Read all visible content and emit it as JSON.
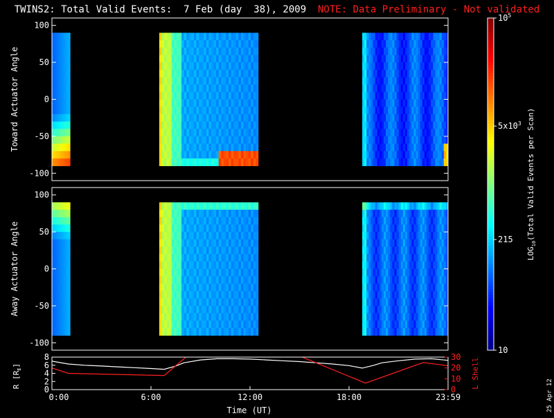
{
  "header": {
    "title": "TWINS2: Total Valid Events:  7 Feb (day  38), 2009",
    "note": "NOTE: Data Preliminary - Not validated"
  },
  "date_stamp": "25 Apr 12",
  "chart_data": [
    {
      "type": "heatmap",
      "name": "toward-panel",
      "ylabel": "Toward Actuator Angle",
      "ylim": [
        -110,
        110
      ],
      "yticks": [
        "100",
        "50",
        "0",
        "-50",
        "-100"
      ],
      "ytick_values": [
        100,
        50,
        0,
        -50,
        -100
      ],
      "xlim": [
        0,
        24
      ],
      "angle_range": [
        -90,
        90
      ],
      "data_blocks": [
        {
          "t_start": 0.0,
          "t_end": 1.1,
          "profile": "toward-early"
        },
        {
          "t_start": 6.5,
          "t_end": 12.5,
          "profile": "toward-mid"
        },
        {
          "t_start": 18.8,
          "t_end": 24.0,
          "profile": "toward-late"
        }
      ]
    },
    {
      "type": "heatmap",
      "name": "away-panel",
      "ylabel": "Away Actuator Angle",
      "ylim": [
        -110,
        110
      ],
      "yticks": [
        "100",
        "50",
        "0",
        "-50",
        "-100"
      ],
      "ytick_values": [
        100,
        50,
        0,
        -50,
        -100
      ],
      "xlim": [
        0,
        24
      ],
      "angle_range": [
        -90,
        90
      ],
      "data_blocks": [
        {
          "t_start": 0.0,
          "t_end": 1.1,
          "profile": "away-early"
        },
        {
          "t_start": 6.5,
          "t_end": 12.5,
          "profile": "away-mid"
        },
        {
          "t_start": 18.8,
          "t_end": 24.0,
          "profile": "away-late"
        }
      ]
    },
    {
      "type": "line",
      "name": "orbit-panel",
      "ylabel_left": "R [R",
      "ylabel_left_sub": "E",
      "ylabel_left_end": "]",
      "ylabel_right": "L Shell",
      "ylim_left": [
        0,
        8
      ],
      "ylim_right": [
        0,
        30
      ],
      "yticks_left": [
        "8",
        "6",
        "4",
        "2",
        "0"
      ],
      "yticks_left_values": [
        8,
        6,
        4,
        2,
        0
      ],
      "yticks_right": [
        "30",
        "20",
        "10",
        "0"
      ],
      "yticks_right_values": [
        30,
        20,
        10,
        0
      ],
      "xlabel": "Time (UT)",
      "xticks": [
        "0:00",
        "6:00",
        "12:00",
        "18:00",
        "23:59"
      ],
      "xtick_values": [
        0,
        6,
        12,
        18,
        24
      ],
      "xlim": [
        0,
        24
      ],
      "series": [
        {
          "axis": "left",
          "color": "#ffffff",
          "x": [
            0,
            1,
            2,
            3,
            4,
            5,
            6,
            6.8,
            7.5,
            8,
            9,
            10,
            11,
            12,
            13,
            14,
            15,
            16,
            17,
            18,
            18.8,
            19.5,
            20,
            21,
            22,
            23,
            24
          ],
          "y": [
            7.0,
            6.3,
            6.0,
            5.8,
            5.6,
            5.4,
            5.2,
            5.0,
            5.8,
            6.6,
            7.3,
            7.6,
            7.6,
            7.5,
            7.3,
            7.1,
            6.9,
            6.6,
            6.3,
            5.9,
            5.3,
            6.0,
            6.6,
            7.1,
            7.5,
            7.6,
            7.2
          ]
        },
        {
          "axis": "right",
          "color": "#ff2020",
          "x": [
            0,
            1,
            6.8,
            8.2
          ],
          "y": [
            20,
            15,
            13,
            31
          ]
        },
        {
          "axis": "right",
          "color": "#ff2020",
          "x": [
            15.0,
            19.0,
            22.5,
            24
          ],
          "y": [
            31,
            6,
            25,
            22
          ]
        }
      ]
    }
  ],
  "colorbar": {
    "label": "LOG",
    "label_sub": "10",
    "label_rest": "(Total Valid Events per Scan)",
    "scale": "log",
    "range": [
      10,
      100000
    ],
    "ticks": [
      {
        "value": 100000,
        "text": "10",
        "sup": "5"
      },
      {
        "value": 5000,
        "text": "5x10",
        "sup": "3"
      },
      {
        "value": 215,
        "text": "215",
        "sup": ""
      },
      {
        "value": 10,
        "text": "10",
        "sup": ""
      }
    ]
  }
}
